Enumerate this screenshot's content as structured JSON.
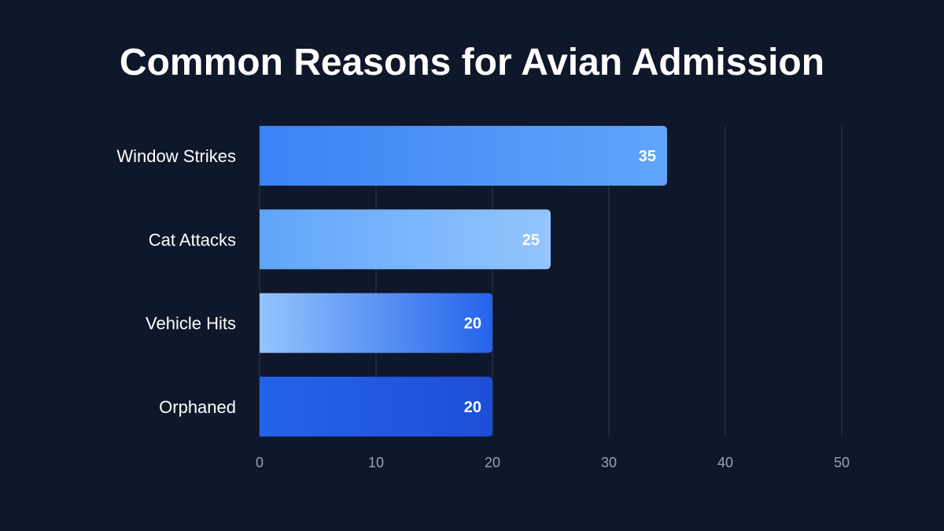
{
  "chart_data": {
    "type": "bar",
    "orientation": "horizontal",
    "title": "Common Reasons for Avian Admission",
    "categories": [
      "Window Strikes",
      "Cat Attacks",
      "Vehicle Hits",
      "Orphaned"
    ],
    "values": [
      35,
      25,
      20,
      20
    ],
    "xlim": [
      0,
      50
    ],
    "xticks": [
      0,
      10,
      20,
      30,
      40,
      50
    ],
    "grid": true,
    "data_labels": true,
    "bar_gradients": [
      [
        "#3b82f6",
        "#60a5fa"
      ],
      [
        "#60a5fa",
        "#93c5fd"
      ],
      [
        "#93c5fd",
        "#2563eb"
      ],
      [
        "#2563eb",
        "#1d4ed8"
      ]
    ],
    "colors": {
      "background": "#0f172a",
      "grid": "#1e293b",
      "tick_text": "#94a3b8",
      "label_text": "#ffffff"
    }
  }
}
